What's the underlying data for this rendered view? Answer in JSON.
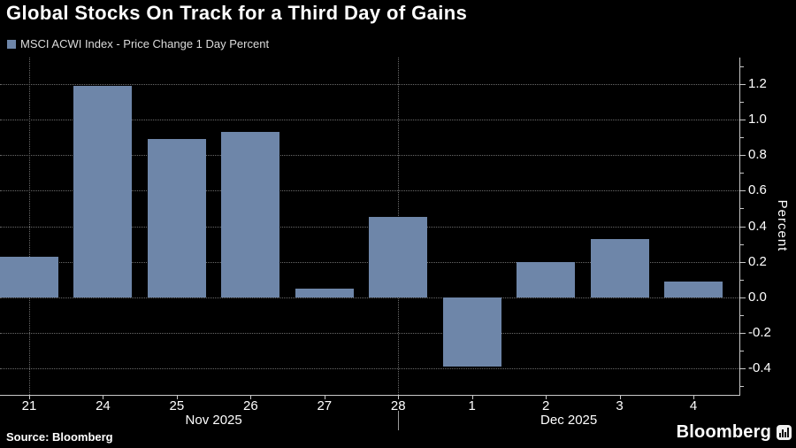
{
  "header": {
    "title": "Global Stocks On Track for a Third Day of Gains",
    "legend_label": "MSCI ACWI Index - Price Change 1 Day Percent"
  },
  "footer": {
    "source": "Source: Bloomberg",
    "logo_text": "Bloomberg"
  },
  "chart_data": {
    "type": "bar",
    "title": "Global Stocks On Track for a Third Day of Gains",
    "series_name": "MSCI ACWI Index - Price Change 1 Day Percent",
    "categories": [
      "21",
      "24",
      "25",
      "26",
      "27",
      "28",
      "1",
      "2",
      "3",
      "4"
    ],
    "values": [
      0.23,
      1.19,
      0.89,
      0.93,
      0.05,
      0.45,
      -0.39,
      0.2,
      0.33,
      0.09
    ],
    "xlabel": "",
    "ylabel": "Percent",
    "ylim": [
      -0.55,
      1.35
    ],
    "y_ticks": [
      "-0.4",
      "-0.2",
      "0.0",
      "0.2",
      "0.4",
      "0.6",
      "0.8",
      "1.0",
      "1.2"
    ],
    "minor_tick_step": 0.1,
    "grid": "dotted",
    "vertical_grid_indices": [
      0,
      5
    ],
    "months": [
      {
        "label": "Nov 2025",
        "start_index": 0,
        "end_index": 5
      },
      {
        "label": "Dec 2025",
        "start_index": 5,
        "end_index": null
      }
    ],
    "month_boundary_indices": [
      5
    ],
    "legend_position": "top-left",
    "axis_side": "right",
    "colors": {
      "background": "#000000",
      "bar": "#6e86a9",
      "grid": "#6a6a6a",
      "axis": "#c8c8c8",
      "text": "#ffffff",
      "legend_text": "#dcdcdc"
    }
  }
}
